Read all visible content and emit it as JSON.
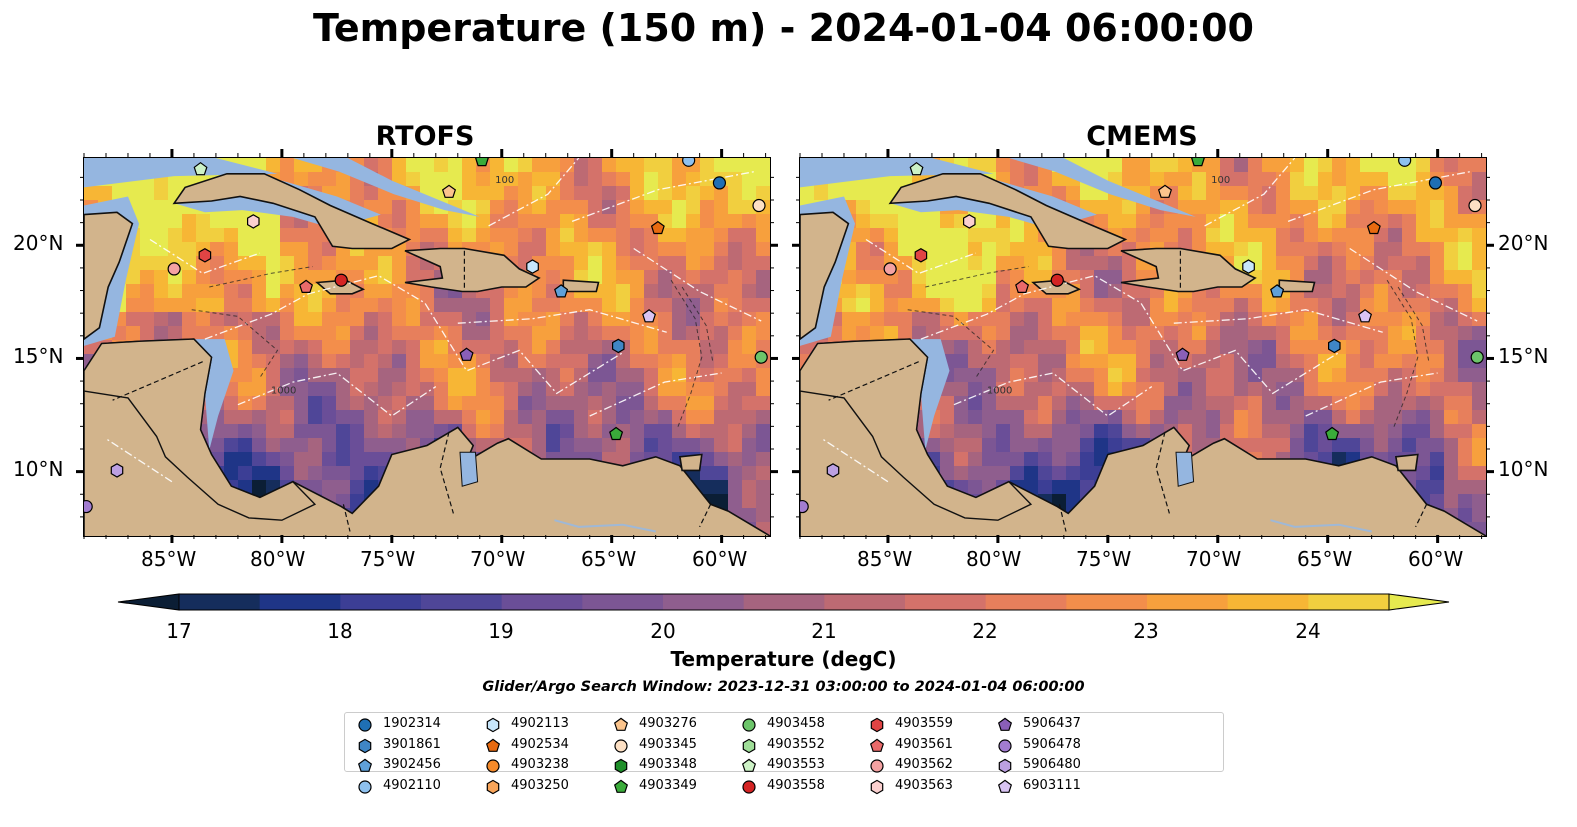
{
  "title": "Temperature (150 m) - 2024-01-04 06:00:00",
  "panels": [
    {
      "title": "RTOFS"
    },
    {
      "title": "CMEMS"
    }
  ],
  "axes": {
    "lat_labels": [
      "20°N",
      "15°N",
      "10°N"
    ],
    "lon_labels": [
      "85°W",
      "80°W",
      "75°W",
      "70°W",
      "65°W",
      "60°W"
    ],
    "contour_labels": [
      "100",
      "1000"
    ]
  },
  "colorbar": {
    "label": "Temperature (degC)",
    "ticks": [
      "17",
      "18",
      "19",
      "20",
      "21",
      "22",
      "23",
      "24"
    ],
    "range": [
      16.75,
      24.5
    ],
    "colors": [
      "#0b1e35",
      "#152d5c",
      "#1f3587",
      "#3c3e95",
      "#4f4698",
      "#6a4e98",
      "#7c5694",
      "#8f5e8e",
      "#a6647f",
      "#bd6a73",
      "#d4726a",
      "#e77f5c",
      "#f38e4b",
      "#f7a03d",
      "#f7b635",
      "#f1cf3f",
      "#e6ea4f"
    ]
  },
  "search_window": "Glider/Argo Search Window: 2023-12-31 03:00:00 to 2024-01-04 06:00:00",
  "legend": [
    {
      "id": "1902314",
      "color": "#1f6fb4",
      "marker": "circle"
    },
    {
      "id": "3901861",
      "color": "#3f86c6",
      "marker": "hexagon"
    },
    {
      "id": "3902456",
      "color": "#5fa0d8",
      "marker": "pentagon"
    },
    {
      "id": "4902110",
      "color": "#8ec1ef",
      "marker": "circle"
    },
    {
      "id": "4902113",
      "color": "#c7e6fb",
      "marker": "hexagon"
    },
    {
      "id": "4902534",
      "color": "#e86a10",
      "marker": "pentagon"
    },
    {
      "id": "4903238",
      "color": "#f58a2a",
      "marker": "circle"
    },
    {
      "id": "4903250",
      "color": "#f9a55a",
      "marker": "hexagon"
    },
    {
      "id": "4903276",
      "color": "#fbc48c",
      "marker": "pentagon"
    },
    {
      "id": "4903345",
      "color": "#fde0c4",
      "marker": "circle"
    },
    {
      "id": "4903348",
      "color": "#1f8f2a",
      "marker": "hexagon"
    },
    {
      "id": "4903349",
      "color": "#3aab3a",
      "marker": "pentagon"
    },
    {
      "id": "4903458",
      "color": "#6cc56a",
      "marker": "circle"
    },
    {
      "id": "4903552",
      "color": "#9fde98",
      "marker": "hexagon"
    },
    {
      "id": "4903553",
      "color": "#cdf2c6",
      "marker": "pentagon"
    },
    {
      "id": "4903558",
      "color": "#d42424",
      "marker": "circle"
    },
    {
      "id": "4903559",
      "color": "#e04444",
      "marker": "hexagon"
    },
    {
      "id": "4903561",
      "color": "#ea6a6a",
      "marker": "pentagon"
    },
    {
      "id": "4903562",
      "color": "#f4a2a2",
      "marker": "circle"
    },
    {
      "id": "4903563",
      "color": "#fbd0cf",
      "marker": "hexagon"
    },
    {
      "id": "5906437",
      "color": "#8a5fb8",
      "marker": "pentagon"
    },
    {
      "id": "5906478",
      "color": "#a27cd0",
      "marker": "circle"
    },
    {
      "id": "5906480",
      "color": "#bca0e2",
      "marker": "hexagon"
    },
    {
      "id": "6903111",
      "color": "#d9c4f3",
      "marker": "pentagon"
    }
  ],
  "floats_on_map": [
    {
      "lon": -60.1,
      "lat": 22.8,
      "color": "#1f6fb4",
      "marker": "circle"
    },
    {
      "lon": -61.5,
      "lat": 23.8,
      "color": "#8ec1ef",
      "marker": "circle"
    },
    {
      "lon": -58.3,
      "lat": 21.8,
      "color": "#fde0c4",
      "marker": "circle"
    },
    {
      "lon": -68.6,
      "lat": 19.1,
      "color": "#c7e6fb",
      "marker": "hexagon"
    },
    {
      "lon": -67.3,
      "lat": 18.0,
      "color": "#5fa0d8",
      "marker": "pentagon"
    },
    {
      "lon": -62.9,
      "lat": 20.8,
      "color": "#e86a10",
      "marker": "pentagon"
    },
    {
      "lon": -72.4,
      "lat": 22.4,
      "color": "#fbc48c",
      "marker": "pentagon"
    },
    {
      "lon": -70.9,
      "lat": 23.8,
      "color": "#3aab3a",
      "marker": "pentagon"
    },
    {
      "lon": -64.7,
      "lat": 15.6,
      "color": "#3f86c6",
      "marker": "hexagon"
    },
    {
      "lon": -64.8,
      "lat": 11.7,
      "color": "#3aab3a",
      "marker": "pentagon"
    },
    {
      "lon": -58.2,
      "lat": 15.1,
      "color": "#6cc56a",
      "marker": "circle"
    },
    {
      "lon": -63.3,
      "lat": 16.9,
      "color": "#d9c4f3",
      "marker": "pentagon"
    },
    {
      "lon": -71.6,
      "lat": 15.2,
      "color": "#8a5fb8",
      "marker": "pentagon"
    },
    {
      "lon": -77.3,
      "lat": 18.5,
      "color": "#d42424",
      "marker": "circle"
    },
    {
      "lon": -78.9,
      "lat": 18.2,
      "color": "#ea6a6a",
      "marker": "pentagon"
    },
    {
      "lon": -83.5,
      "lat": 19.6,
      "color": "#e04444",
      "marker": "hexagon"
    },
    {
      "lon": -84.9,
      "lat": 19.0,
      "color": "#f4a2a2",
      "marker": "circle"
    },
    {
      "lon": -81.3,
      "lat": 21.1,
      "color": "#fbd0cf",
      "marker": "hexagon"
    },
    {
      "lon": -83.7,
      "lat": 23.4,
      "color": "#cdf2c6",
      "marker": "pentagon"
    },
    {
      "lon": -87.5,
      "lat": 10.1,
      "color": "#bca0e2",
      "marker": "hexagon"
    },
    {
      "lon": -88.9,
      "lat": 8.5,
      "color": "#a27cd0",
      "marker": "circle"
    }
  ]
}
